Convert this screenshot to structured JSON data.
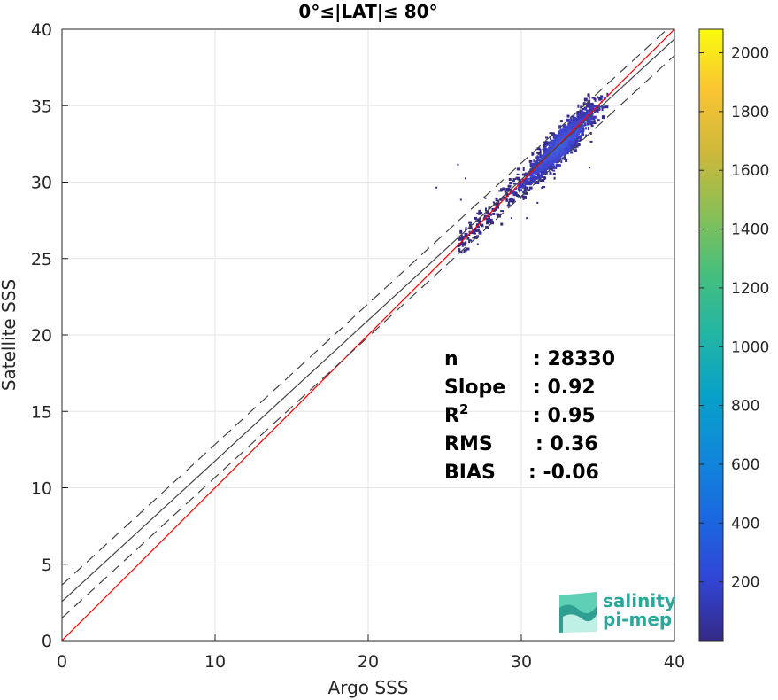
{
  "chart_data": {
    "type": "heatmap",
    "title": "0°≤|LAT|≤ 80°",
    "xlabel": "Argo SSS",
    "ylabel": "Satellite SSS",
    "xlim": [
      0,
      40
    ],
    "ylim": [
      0,
      40
    ],
    "xticks": [
      "0",
      "10",
      "20",
      "30",
      "40"
    ],
    "yticks": [
      "0",
      "5",
      "10",
      "15",
      "20",
      "25",
      "30",
      "35",
      "40"
    ],
    "grid": true,
    "density_cluster": {
      "center": [
        32.5,
        32.6
      ],
      "x_range": [
        25.8,
        35.6
      ],
      "y_range": [
        25.5,
        36.0
      ]
    },
    "lines": [
      {
        "name": "one-to-one",
        "color": "#ff0000",
        "style": "solid",
        "intercept": 0,
        "slope": 1
      },
      {
        "name": "regression",
        "color": "#444444",
        "style": "solid",
        "intercept": 2.56,
        "slope": 0.92
      },
      {
        "name": "upper-bound",
        "color": "#444444",
        "style": "dashed",
        "intercept": 3.64,
        "slope": 0.92
      },
      {
        "name": "lower-bound",
        "color": "#444444",
        "style": "dashed",
        "intercept": 1.48,
        "slope": 0.92
      }
    ],
    "colorbar": {
      "min": 0,
      "max": 2080,
      "ticks": [
        "200",
        "400",
        "600",
        "800",
        "1000",
        "1200",
        "1400",
        "1600",
        "1800",
        "2000"
      ],
      "colormap": "parula"
    },
    "stats": [
      {
        "label": "n",
        "sep": ": ",
        "value": "28330"
      },
      {
        "label": "Slope",
        "sep": ": ",
        "value": "0.92"
      },
      {
        "label": "R",
        "sup": "2",
        "sep": ": ",
        "value": "0.95"
      },
      {
        "label": "RMS",
        "sep": ": ",
        "value": "0.36"
      },
      {
        "label": "BIAS",
        "sep": ": ",
        "value": "-0.06"
      }
    ]
  },
  "logo": {
    "line1": "salinity",
    "line2": "pi-mep",
    "color": "#2aa89a"
  }
}
